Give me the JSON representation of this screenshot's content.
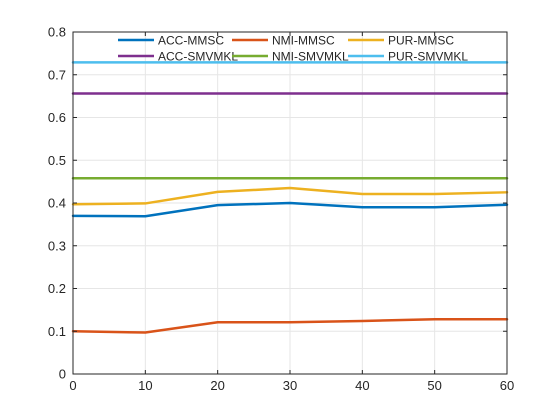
{
  "chart_data": {
    "type": "line",
    "title": "",
    "xlabel": "",
    "ylabel": "",
    "xlim": [
      0,
      60
    ],
    "ylim": [
      0,
      0.8
    ],
    "x_ticks": [
      "0",
      "10",
      "20",
      "30",
      "40",
      "50",
      "60"
    ],
    "y_ticks": [
      "0",
      "0.1",
      "0.2",
      "0.3",
      "0.4",
      "0.5",
      "0.6",
      "0.7",
      "0.8"
    ],
    "x_tick_values": [
      0,
      10,
      20,
      30,
      40,
      50,
      60
    ],
    "y_tick_values": [
      0,
      0.1,
      0.2,
      0.3,
      0.4,
      0.5,
      0.6,
      0.7,
      0.8
    ],
    "grid": true,
    "legend_position": "top",
    "legend_columns": 3,
    "x": [
      0,
      10,
      20,
      30,
      40,
      50,
      60
    ],
    "series": [
      {
        "name": "ACC-MMSC",
        "color": "#0072BD",
        "values": [
          0.37,
          0.369,
          0.395,
          0.4,
          0.39,
          0.39,
          0.396
        ]
      },
      {
        "name": "NMI-MMSC",
        "color": "#D95319",
        "values": [
          0.1,
          0.097,
          0.121,
          0.121,
          0.124,
          0.128,
          0.128
        ]
      },
      {
        "name": "PUR-MMSC",
        "color": "#EDB120",
        "values": [
          0.397,
          0.399,
          0.426,
          0.435,
          0.421,
          0.421,
          0.425
        ]
      },
      {
        "name": "ACC-SMVMKL",
        "color": "#7E2F8E",
        "values": [
          0.656,
          0.656,
          0.656,
          0.656,
          0.656,
          0.656,
          0.656
        ]
      },
      {
        "name": "NMI-SMVMKL",
        "color": "#77AC30",
        "values": [
          0.458,
          0.458,
          0.458,
          0.458,
          0.458,
          0.458,
          0.458
        ]
      },
      {
        "name": "PUR-SMVMKL",
        "color": "#4DBEEE",
        "values": [
          0.729,
          0.729,
          0.729,
          0.729,
          0.729,
          0.729,
          0.729
        ]
      }
    ],
    "axis_color": "#262626",
    "grid_color": "#e6e6e6"
  }
}
